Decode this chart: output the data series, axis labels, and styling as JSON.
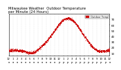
{
  "title": "Milwaukee Weather  Outdoor Temperature\nper Minute (24 Hours)",
  "line_color": "#cc0000",
  "bg_color": "#ffffff",
  "legend_label": "Outdoor Temp",
  "legend_color": "#cc0000",
  "ylim": [
    5,
    80
  ],
  "yticks": [
    10,
    20,
    30,
    40,
    50,
    60,
    70
  ],
  "ylabel_fontsize": 3.0,
  "xlabel_fontsize": 2.8,
  "title_fontsize": 3.8,
  "marker_size": 0.3,
  "grid_color": "#aaaaaa",
  "num_points": 1440,
  "temp_start": 15,
  "temp_min": 10,
  "temp_min_hour": 5.5,
  "temp_peak": 72,
  "temp_peak_hour": 14.0,
  "temp_end": 20,
  "noise_std": 1.2,
  "xlim": [
    0,
    24
  ],
  "xtick_step": 1
}
